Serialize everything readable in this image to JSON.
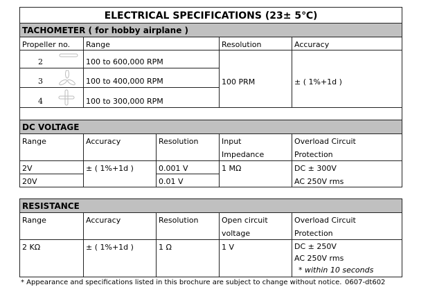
{
  "title": "ELECTRICAL SPECIFICATIONS (23± 5℃)",
  "tachometer": {
    "heading": "TACHOMETER ( for hobby airplane )",
    "headers": [
      "Propeller no.",
      "Range",
      "Resolution",
      "Accuracy"
    ],
    "rows": [
      {
        "no": "2",
        "icon": "two-blade-propeller-icon",
        "range": "100 to 600,000 RPM"
      },
      {
        "no": "3",
        "icon": "three-blade-propeller-icon",
        "range": "100 to 400,000 RPM"
      },
      {
        "no": "4",
        "icon": "four-blade-propeller-icon",
        "range": "100 to 300,000 RPM"
      }
    ],
    "resolution": "100 PRM",
    "accuracy": "± ( 1%+1d )"
  },
  "dc_voltage": {
    "heading": "DC VOLTAGE",
    "headers": [
      "Range",
      "Accuracy",
      "Resolution",
      "Input",
      "Impedance",
      "Overload Circuit",
      "Protection"
    ],
    "ranges": [
      "2V",
      "20V"
    ],
    "accuracy": "± ( 1%+1d )",
    "resolutions": [
      "0.001 V",
      "0.01 V"
    ],
    "impedance": "1 MΩ",
    "protection": [
      "DC ±  300V",
      "AC 250V rms"
    ]
  },
  "resistance": {
    "heading": "RESISTANCE",
    "headers": [
      "Range",
      "Accuracy",
      "Resolution",
      "Open circuit",
      "voltage",
      "Overload Circuit",
      "Protection"
    ],
    "range": "2 KΩ",
    "accuracy": "± ( 1%+1d )",
    "resolution": "1 Ω",
    "voltage": "1 V",
    "protection": [
      "DC ±  250V",
      "AC 250V rms",
      "*  within 10 seconds"
    ]
  },
  "footnote": "* Appearance and specifications listed in this brochure are subject to change without notice.",
  "code": "0607-dt602"
}
